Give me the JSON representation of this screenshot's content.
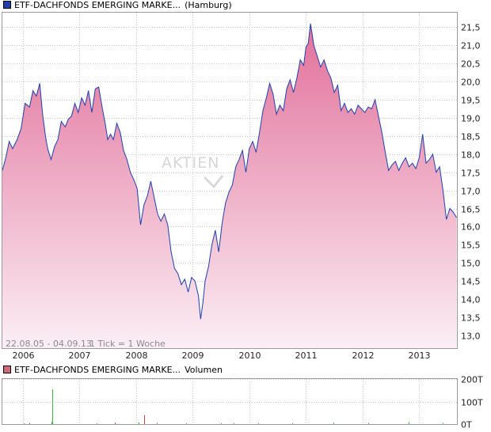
{
  "colors": {
    "line": "#1f3faa",
    "fill_top": "#e2709a",
    "fill_bottom": "#fbeef4",
    "grid": "#c8c8c8",
    "volume_up": "#3db83d",
    "volume_down": "#c84040",
    "price_swatch": "#1f3faa",
    "volume_swatch": "#d06a7a"
  },
  "legend": {
    "price": {
      "name": "ETF-DACHFONDS EMERGING MARKE...",
      "exchange": "(Hamburg)"
    },
    "volume": {
      "name": "ETF-DACHFONDS EMERGING MARKE...",
      "label": "Volumen"
    }
  },
  "range_text": "22.08.05 - 04.09.13",
  "tick_text": "1 Tick = 1 Woche",
  "watermark": "AKTIEN",
  "chart_data": [
    {
      "type": "area",
      "x_ticks": [
        "2006",
        "2007",
        "2008",
        "2009",
        "2010",
        "2011",
        "2012",
        "2013"
      ],
      "x_tick_values": [
        2006,
        2007,
        2008,
        2009,
        2010,
        2011,
        2012,
        2013
      ],
      "x_range": [
        2005.64,
        2013.68
      ],
      "y_ticks": [
        "13,0",
        "13,5",
        "14,0",
        "14,5",
        "15,0",
        "15,5",
        "16,0",
        "16,5",
        "17,0",
        "17,5",
        "18,0",
        "18,5",
        "19,0",
        "19,5",
        "20,0",
        "20,5",
        "21,0",
        "21,5"
      ],
      "y_tick_values": [
        13.0,
        13.5,
        14.0,
        14.5,
        15.0,
        15.5,
        16.0,
        16.5,
        17.0,
        17.5,
        18.0,
        18.5,
        19.0,
        19.5,
        20.0,
        20.5,
        21.0,
        21.5
      ],
      "ylim": [
        12.65,
        21.9
      ],
      "grid": true,
      "series": [
        {
          "x": [
            2005.64,
            2005.7,
            2005.76,
            2005.82,
            2005.9,
            2005.97,
            2006.04,
            2006.12,
            2006.18,
            2006.24,
            2006.3,
            2006.35,
            2006.4,
            2006.44,
            2006.5,
            2006.56,
            2006.62,
            2006.68,
            2006.75,
            2006.8,
            2006.86,
            2006.92,
            2006.98,
            2007.04,
            2007.1,
            2007.16,
            2007.22,
            2007.28,
            2007.34,
            2007.4,
            2007.46,
            2007.5,
            2007.55,
            2007.6,
            2007.66,
            2007.72,
            2007.78,
            2007.84,
            2007.9,
            2007.96,
            2008.02,
            2008.08,
            2008.14,
            2008.2,
            2008.26,
            2008.32,
            2008.38,
            2008.44,
            2008.5,
            2008.56,
            2008.62,
            2008.68,
            2008.74,
            2008.8,
            2008.86,
            2008.92,
            2008.98,
            2009.04,
            2009.1,
            2009.14,
            2009.18,
            2009.22,
            2009.28,
            2009.34,
            2009.4,
            2009.46,
            2009.52,
            2009.58,
            2009.64,
            2009.7,
            2009.76,
            2009.82,
            2009.88,
            2009.94,
            2010.0,
            2010.06,
            2010.12,
            2010.18,
            2010.24,
            2010.3,
            2010.36,
            2010.42,
            2010.48,
            2010.54,
            2010.6,
            2010.66,
            2010.72,
            2010.78,
            2010.84,
            2010.9,
            2010.96,
            2011.0,
            2011.04,
            2011.08,
            2011.14,
            2011.2,
            2011.26,
            2011.32,
            2011.38,
            2011.44,
            2011.5,
            2011.56,
            2011.62,
            2011.68,
            2011.74,
            2011.8,
            2011.86,
            2011.92,
            2011.98,
            2012.04,
            2012.1,
            2012.16,
            2012.22,
            2012.28,
            2012.34,
            2012.4,
            2012.46,
            2012.52,
            2012.58,
            2012.64,
            2012.7,
            2012.76,
            2012.82,
            2012.88,
            2012.94,
            2013.0,
            2013.06,
            2013.12,
            2013.18,
            2013.24,
            2013.3,
            2013.36,
            2013.42,
            2013.48,
            2013.54,
            2013.6,
            2013.66
          ],
          "y": [
            17.55,
            17.9,
            18.35,
            18.15,
            18.4,
            18.7,
            19.4,
            19.3,
            19.75,
            19.6,
            19.95,
            19.1,
            18.5,
            18.15,
            17.85,
            18.2,
            18.4,
            18.9,
            18.75,
            18.95,
            19.05,
            19.4,
            19.15,
            19.55,
            19.35,
            19.75,
            19.15,
            19.8,
            19.85,
            19.3,
            18.8,
            18.4,
            18.55,
            18.4,
            18.85,
            18.6,
            18.1,
            17.85,
            17.5,
            17.3,
            17.05,
            16.05,
            16.6,
            16.85,
            17.25,
            16.8,
            16.35,
            16.15,
            16.35,
            16.05,
            15.3,
            14.85,
            14.7,
            14.4,
            14.55,
            14.2,
            14.6,
            14.5,
            14.1,
            13.45,
            13.9,
            14.5,
            14.9,
            15.5,
            15.9,
            15.3,
            16.1,
            16.65,
            16.95,
            17.15,
            17.65,
            17.85,
            18.1,
            17.5,
            18.15,
            18.35,
            18.05,
            18.6,
            19.2,
            19.55,
            19.95,
            19.65,
            19.1,
            19.35,
            19.2,
            19.8,
            20.05,
            19.7,
            20.1,
            20.6,
            20.45,
            20.95,
            21.05,
            21.6,
            21.0,
            20.7,
            20.4,
            20.6,
            20.3,
            20.1,
            19.7,
            19.9,
            19.2,
            19.4,
            19.15,
            19.25,
            19.1,
            19.35,
            19.25,
            19.15,
            19.3,
            19.25,
            19.5,
            19.05,
            18.6,
            18.05,
            17.55,
            17.7,
            17.8,
            17.55,
            17.75,
            17.9,
            17.65,
            17.75,
            17.6,
            17.9,
            18.55,
            17.75,
            17.85,
            18.0,
            17.5,
            17.65,
            17.0,
            16.2,
            16.5,
            16.4,
            16.25
          ]
        }
      ]
    },
    {
      "type": "bar",
      "y_ticks": [
        "0T",
        "100T",
        "200T"
      ],
      "y_tick_values": [
        0,
        100,
        200
      ],
      "ylim": [
        0,
        200
      ],
      "grid": true,
      "series": [
        {
          "name": "Volumen",
          "x": [
            2006.02,
            2006.12,
            2006.5,
            2006.52,
            2007.3,
            2007.62,
            2008.04,
            2008.14,
            2008.36,
            2008.88,
            2009.5,
            2009.72,
            2010.16,
            2010.76,
            2011.48,
            2012.1,
            2012.82,
            2013.42
          ],
          "values": [
            4,
            5,
            10,
            155,
            3,
            6,
            8,
            40,
            5,
            3,
            4,
            4,
            3,
            4,
            6,
            5,
            9,
            5
          ],
          "color": [
            "up",
            "down",
            "up",
            "up",
            "up",
            "down",
            "up",
            "down",
            "up",
            "down",
            "up",
            "up",
            "down",
            "up",
            "up",
            "up",
            "up",
            "up"
          ]
        }
      ]
    }
  ]
}
